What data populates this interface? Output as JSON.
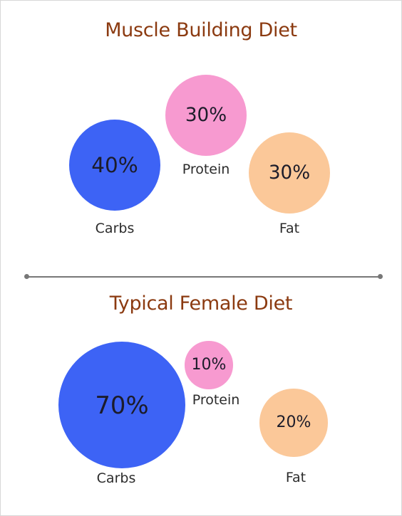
{
  "colors": {
    "title": "#8b3a10",
    "carbs": "#3d63f5",
    "protein": "#f79ad0",
    "fat": "#fbc899"
  },
  "chart_data": [
    {
      "type": "bubble",
      "title": "Muscle Building Diet",
      "categories": [
        "Carbs",
        "Protein",
        "Fat"
      ],
      "values": [
        40,
        30,
        30
      ],
      "value_labels": [
        "40%",
        "30%",
        "30%"
      ]
    },
    {
      "type": "bubble",
      "title": "Typical Female Diet",
      "categories": [
        "Carbs",
        "Protein",
        "Fat"
      ],
      "values": [
        70,
        10,
        20
      ],
      "value_labels": [
        "70%",
        "10%",
        "20%"
      ]
    }
  ]
}
